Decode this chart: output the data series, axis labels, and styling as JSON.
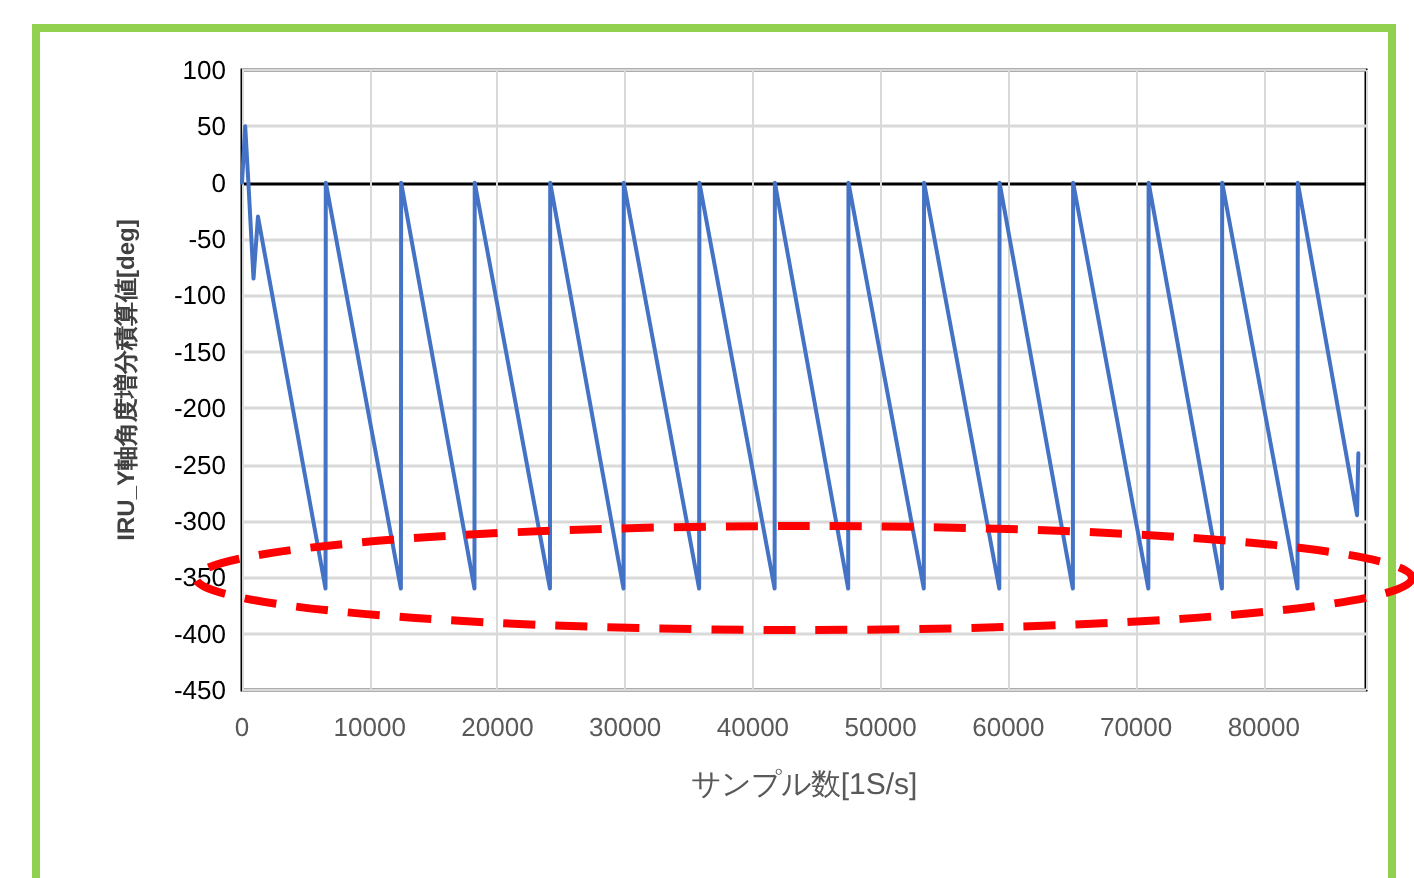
{
  "chart_data": {
    "type": "line",
    "xlabel": "サンプル数[1S/s]",
    "ylabel": "IRU_Y軸角度増分積算値[deg]",
    "x": [
      0,
      250,
      500,
      900,
      1250,
      6540,
      6560,
      12440,
      12460,
      18200,
      18220,
      24110,
      24130,
      29870,
      29890,
      35790,
      35810,
      41700,
      41720,
      47460,
      47480,
      53380,
      53400,
      59290,
      59310,
      65050,
      65070,
      70960,
      70980,
      76720,
      76740,
      82640,
      82660,
      87300,
      87400
    ],
    "series": [
      {
        "color": "#4472c4",
        "values": [
          0,
          50,
          0,
          -85,
          -30,
          -360,
          0,
          -360,
          0,
          -360,
          0,
          -360,
          0,
          -360,
          0,
          -360,
          0,
          -360,
          0,
          -360,
          0,
          -360,
          0,
          -360,
          0,
          -360,
          0,
          -360,
          0,
          -360,
          0,
          -360,
          0,
          -295,
          -240
        ]
      }
    ],
    "xlim": [
      0,
      88000
    ],
    "xticks": [
      0,
      10000,
      20000,
      30000,
      40000,
      50000,
      60000,
      70000,
      80000
    ],
    "ylim": [
      -450,
      100
    ],
    "yticks": [
      -450,
      -400,
      -350,
      -300,
      -250,
      -200,
      -150,
      -100,
      -50,
      0,
      50,
      100
    ],
    "grid": true,
    "marker": "none",
    "line_style": "solid"
  }
}
